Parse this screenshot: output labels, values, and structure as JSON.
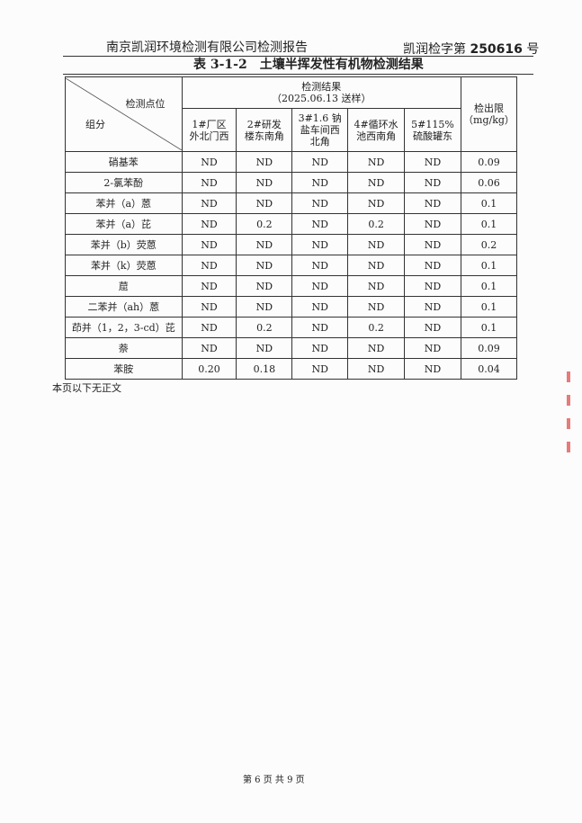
{
  "header": {
    "company": "南京凯润环境检测有限公司检测报告",
    "report_prefix": "凯润检字第",
    "report_no": "250616",
    "report_suffix": "号"
  },
  "table": {
    "title": "表 3-1-2　土壤半挥发性有机物检测结果",
    "corner_top": "检测点位",
    "corner_bottom": "组分",
    "results_label": "检测结果",
    "results_date": "（2025.06.13 送样）",
    "limit_label": "检出限",
    "limit_unit": "（mg/kg）",
    "sites": [
      "1#厂区外北门西",
      "2#研发楼东南角",
      "3#1.6 钠盐车间西北角",
      "4#循环水池西南角",
      "5#115%硫酸罐东"
    ],
    "rows": [
      {
        "name": "硝基苯",
        "values": [
          "ND",
          "ND",
          "ND",
          "ND",
          "ND"
        ],
        "limit": "0.09"
      },
      {
        "name": "2-氯苯酚",
        "values": [
          "ND",
          "ND",
          "ND",
          "ND",
          "ND"
        ],
        "limit": "0.06"
      },
      {
        "name": "苯并（a）蒽",
        "values": [
          "ND",
          "ND",
          "ND",
          "ND",
          "ND"
        ],
        "limit": "0.1"
      },
      {
        "name": "苯并（a）芘",
        "values": [
          "ND",
          "0.2",
          "ND",
          "0.2",
          "ND"
        ],
        "limit": "0.1"
      },
      {
        "name": "苯并（b）荧蒽",
        "values": [
          "ND",
          "ND",
          "ND",
          "ND",
          "ND"
        ],
        "limit": "0.2"
      },
      {
        "name": "苯并（k）荧蒽",
        "values": [
          "ND",
          "ND",
          "ND",
          "ND",
          "ND"
        ],
        "limit": "0.1"
      },
      {
        "name": "䓛",
        "values": [
          "ND",
          "ND",
          "ND",
          "ND",
          "ND"
        ],
        "limit": "0.1"
      },
      {
        "name": "二苯并（ah）蒽",
        "values": [
          "ND",
          "ND",
          "ND",
          "ND",
          "ND"
        ],
        "limit": "0.1"
      },
      {
        "name": "茚并（1，2，3-cd）芘",
        "values": [
          "ND",
          "0.2",
          "ND",
          "0.2",
          "ND"
        ],
        "limit": "0.1"
      },
      {
        "name": "萘",
        "values": [
          "ND",
          "ND",
          "ND",
          "ND",
          "ND"
        ],
        "limit": "0.09"
      },
      {
        "name": "苯胺",
        "values": [
          "0.20",
          "0.18",
          "ND",
          "ND",
          "ND"
        ],
        "limit": "0.04"
      }
    ]
  },
  "note": "本页以下无正文",
  "footer": "第 6 页 共 9 页"
}
